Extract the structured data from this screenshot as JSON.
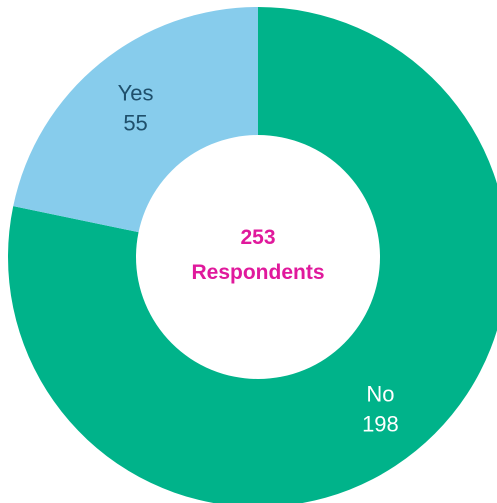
{
  "chart_data": {
    "type": "pie",
    "style": "donut",
    "categories": [
      "No",
      "Yes"
    ],
    "values": [
      198,
      55
    ],
    "colors": [
      "#00b38a",
      "#87ccec"
    ],
    "label_colors": [
      "#ffffff",
      "#1f4f6b"
    ],
    "center_label": {
      "value": "253",
      "text": "Respondents",
      "color": "#e0199c"
    },
    "legend": "none"
  }
}
